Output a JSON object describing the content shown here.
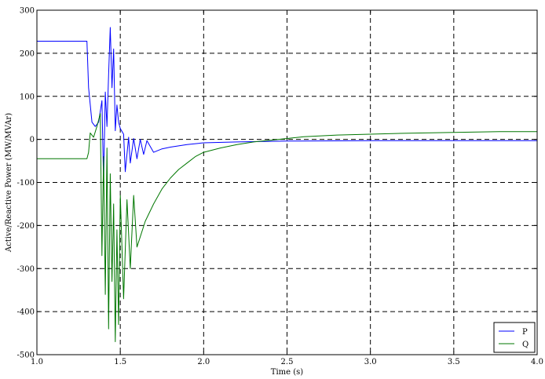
{
  "chart_data": {
    "type": "line",
    "title": "",
    "xlabel": "Time (s)",
    "ylabel": "Active/Reactive Power (MW/MVAr)",
    "xlim": [
      1.0,
      4.0
    ],
    "ylim": [
      -500,
      300
    ],
    "xticks": [
      "1.0",
      "1.5",
      "2.0",
      "2.5",
      "3.0",
      "3.5",
      "4.0"
    ],
    "yticks": [
      "300",
      "200",
      "100",
      "0",
      "-100",
      "-200",
      "-300",
      "-400",
      "-500"
    ],
    "grid": true,
    "grid_style": "dashed",
    "legend_position": "lower-right",
    "series": [
      {
        "name": "P",
        "color": "#0000ff",
        "x": [
          1.0,
          1.3,
          1.31,
          1.33,
          1.35,
          1.37,
          1.39,
          1.4,
          1.41,
          1.42,
          1.43,
          1.44,
          1.45,
          1.46,
          1.47,
          1.48,
          1.49,
          1.5,
          1.52,
          1.53,
          1.55,
          1.56,
          1.58,
          1.6,
          1.62,
          1.64,
          1.66,
          1.7,
          1.75,
          1.8,
          1.9,
          2.0,
          2.2,
          2.5,
          3.0,
          3.5,
          4.0
        ],
        "y": [
          228,
          228,
          120,
          40,
          30,
          40,
          90,
          -100,
          110,
          30,
          150,
          260,
          120,
          210,
          20,
          80,
          40,
          25,
          12,
          -75,
          5,
          -55,
          2,
          -45,
          0,
          -35,
          -3,
          -30,
          -22,
          -18,
          -12,
          -8,
          -6,
          -4,
          -3,
          -3,
          -3
        ]
      },
      {
        "name": "Q",
        "color": "#007700",
        "x": [
          1.0,
          1.3,
          1.31,
          1.32,
          1.34,
          1.36,
          1.38,
          1.39,
          1.4,
          1.41,
          1.42,
          1.43,
          1.44,
          1.45,
          1.46,
          1.47,
          1.48,
          1.49,
          1.5,
          1.52,
          1.54,
          1.56,
          1.58,
          1.6,
          1.65,
          1.7,
          1.75,
          1.8,
          1.85,
          1.9,
          1.95,
          2.0,
          2.1,
          2.2,
          2.3,
          2.4,
          2.5,
          2.6,
          2.8,
          3.0,
          3.2,
          3.5,
          3.8,
          4.0
        ],
        "y": [
          -45,
          -45,
          -30,
          15,
          5,
          30,
          60,
          -270,
          -40,
          -360,
          -20,
          -440,
          -80,
          -330,
          -150,
          -470,
          -210,
          -430,
          -130,
          -370,
          -140,
          -300,
          -130,
          -250,
          -190,
          -150,
          -115,
          -90,
          -70,
          -55,
          -40,
          -30,
          -20,
          -12,
          -6,
          -2,
          2,
          6,
          10,
          12,
          14,
          16,
          18,
          18
        ]
      }
    ]
  }
}
